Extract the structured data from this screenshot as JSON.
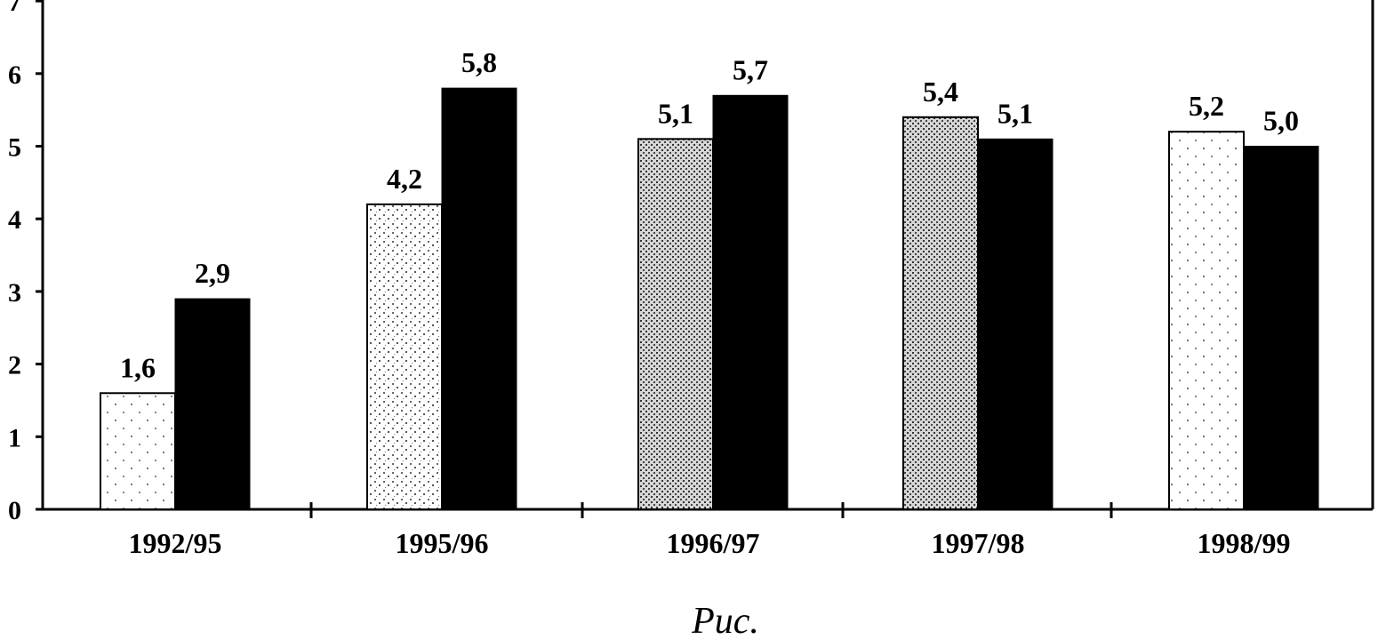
{
  "caption": "Рис.",
  "chart_data": {
    "type": "bar",
    "categories": [
      "1992/95",
      "1995/96",
      "1996/97",
      "1997/98",
      "1998/99"
    ],
    "series": [
      {
        "values": [
          1.6,
          4.2,
          5.1,
          5.4,
          5.2
        ],
        "value_labels": [
          "1,6",
          "4,2",
          "5,1",
          "5,4",
          "5,2"
        ],
        "color": "#ffffff"
      },
      {
        "values": [
          2.9,
          5.8,
          5.7,
          5.1,
          5.0
        ],
        "value_labels": [
          "2,9",
          "5,8",
          "5,7",
          "5,1",
          "5,0"
        ],
        "color": "#000000"
      }
    ],
    "ylim": [
      0,
      7
    ],
    "yticks": [
      "0",
      "1",
      "2",
      "3",
      "4",
      "5",
      "6",
      "7"
    ],
    "grid": false,
    "legend": "none",
    "xlabel": "",
    "ylabel": ""
  }
}
